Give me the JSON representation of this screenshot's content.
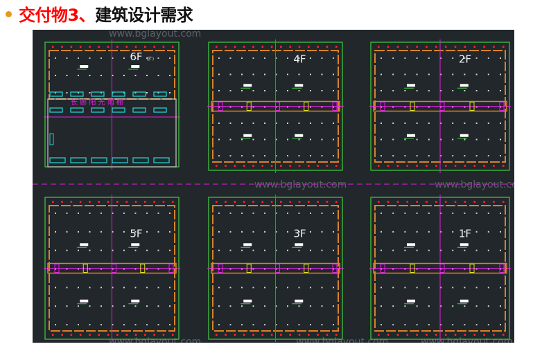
{
  "slide": {
    "title_highlight": "交付物3、",
    "title_rest": "建筑设计需求",
    "bullet_color": "#e69a1a"
  },
  "drawing": {
    "background": "#22272b",
    "watermark": "www.bglayout.com",
    "floors": [
      {
        "label": "6F",
        "note": "(扩)"
      },
      {
        "label": "4F"
      },
      {
        "label": "2F"
      },
      {
        "label": "5F"
      },
      {
        "label": "3F"
      },
      {
        "label": "1F"
      }
    ],
    "corridor_text": "长 廊 阳 光 雨 棚",
    "colors": {
      "wall": "#3fd03f",
      "column": "#d9822b",
      "axis": "#e020e0",
      "fixture": "#ff2020",
      "equipment": "#20d0d0"
    }
  }
}
